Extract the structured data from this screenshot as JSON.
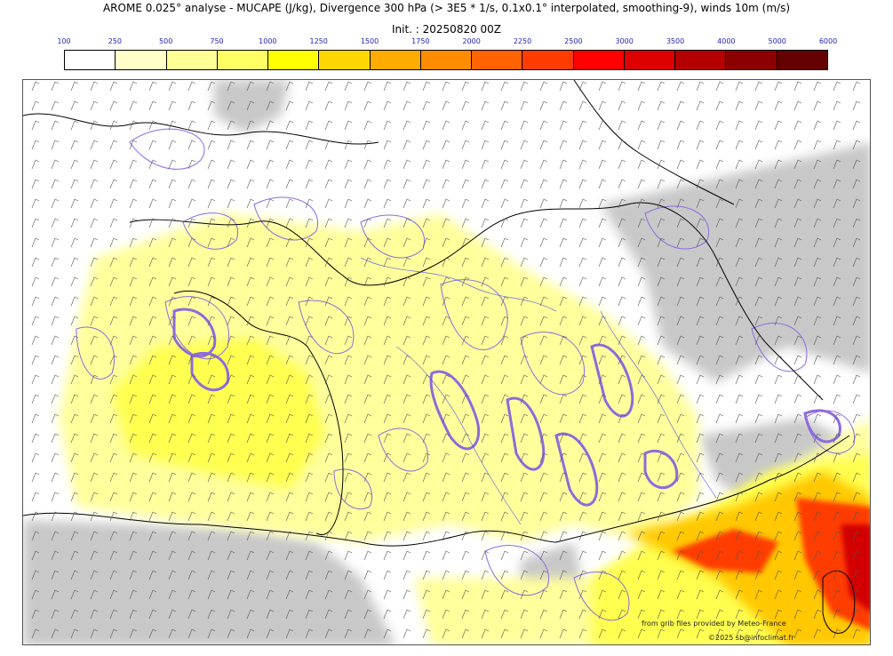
{
  "title": "AROME 0.025° analyse - MUCAPE (J/kg), Divergence 300 hPa (> 3E5 * 1/s, 0.1x0.1° interpolated, smoothing-9), winds 10m (m/s)",
  "subtitle": "Init. : 20250820 00Z",
  "colorbar": {
    "ticks": [
      "100",
      "250",
      "500",
      "750",
      "1000",
      "1250",
      "1500",
      "1750",
      "2000",
      "2250",
      "2500",
      "3000",
      "3500",
      "4000",
      "5000",
      "6000"
    ],
    "colors": [
      "#ffffff",
      "#ffffc8",
      "#ffff96",
      "#ffff64",
      "#ffff00",
      "#ffd700",
      "#ffab00",
      "#ff8c00",
      "#ff6400",
      "#ff3c00",
      "#ff0000",
      "#dc0000",
      "#b40000",
      "#8c0000",
      "#640000"
    ]
  },
  "map": {
    "legend_colors": {
      "divergence_contour": "#8c6bdc",
      "borders": "#000000",
      "rivers": "#2828ff",
      "no_cape_terrain": "#c8c8c8"
    }
  },
  "credits": {
    "line1": "from grib files provided by Meteo-France",
    "line2": "©2025 sb@infoclimat.fr"
  }
}
